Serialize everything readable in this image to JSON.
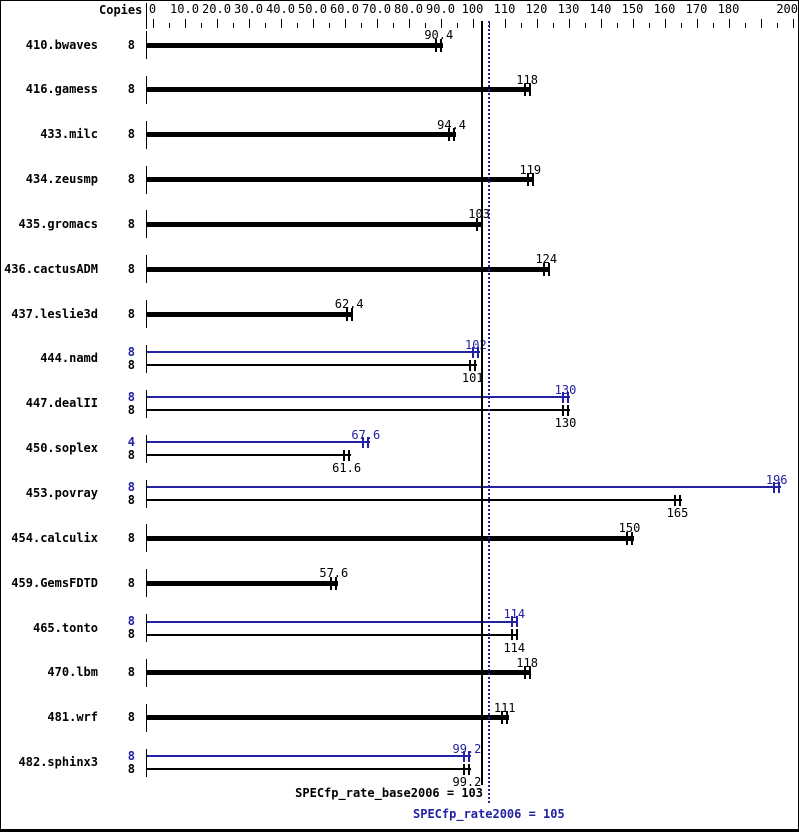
{
  "header": {
    "copies_label": "Copies"
  },
  "colors": {
    "peak_blue": "#2222a2",
    "base_black": "#000000",
    "background": "#ffffff"
  },
  "chart_data": {
    "type": "bar",
    "orientation": "horizontal",
    "title": "",
    "xlabel": "",
    "ylabel": "Copies",
    "xlim": [
      0,
      200
    ],
    "grid": false,
    "axis": {
      "major_step": 10,
      "minor_step": 5,
      "tick_labels": [
        "0",
        "10.0",
        "20.0",
        "30.0",
        "40.0",
        "50.0",
        "60.0",
        "70.0",
        "80.0",
        "90.0",
        "100",
        "110",
        "120",
        "130",
        "140",
        "150",
        "160",
        "170",
        "180",
        "",
        "200"
      ]
    },
    "benchmarks": [
      {
        "name": "410.bwaves",
        "bars": [
          {
            "kind": "base",
            "copies": "8",
            "value": 90.4,
            "label": "90.4"
          }
        ]
      },
      {
        "name": "416.gamess",
        "bars": [
          {
            "kind": "base",
            "copies": "8",
            "value": 118,
            "label": "118"
          }
        ]
      },
      {
        "name": "433.milc",
        "bars": [
          {
            "kind": "base",
            "copies": "8",
            "value": 94.4,
            "label": "94.4"
          }
        ]
      },
      {
        "name": "434.zeusmp",
        "bars": [
          {
            "kind": "base",
            "copies": "8",
            "value": 119,
            "label": "119"
          }
        ]
      },
      {
        "name": "435.gromacs",
        "bars": [
          {
            "kind": "base",
            "copies": "8",
            "value": 103,
            "label": "103"
          }
        ]
      },
      {
        "name": "436.cactusADM",
        "bars": [
          {
            "kind": "base",
            "copies": "8",
            "value": 124,
            "label": "124"
          }
        ]
      },
      {
        "name": "437.leslie3d",
        "bars": [
          {
            "kind": "base",
            "copies": "8",
            "value": 62.4,
            "label": "62.4"
          }
        ]
      },
      {
        "name": "444.namd",
        "bars": [
          {
            "kind": "peak",
            "copies": "8",
            "value": 102,
            "label": "102"
          },
          {
            "kind": "base",
            "copies": "8",
            "value": 101,
            "label": "101"
          }
        ]
      },
      {
        "name": "447.dealII",
        "bars": [
          {
            "kind": "peak",
            "copies": "8",
            "value": 130,
            "label": "130"
          },
          {
            "kind": "base",
            "copies": "8",
            "value": 130,
            "label": "130"
          }
        ]
      },
      {
        "name": "450.soplex",
        "bars": [
          {
            "kind": "peak",
            "copies": "4",
            "value": 67.6,
            "label": "67.6"
          },
          {
            "kind": "base",
            "copies": "8",
            "value": 61.6,
            "label": "61.6"
          }
        ]
      },
      {
        "name": "453.povray",
        "bars": [
          {
            "kind": "peak",
            "copies": "8",
            "value": 196,
            "label": "196"
          },
          {
            "kind": "base",
            "copies": "8",
            "value": 165,
            "label": "165"
          }
        ]
      },
      {
        "name": "454.calculix",
        "bars": [
          {
            "kind": "base",
            "copies": "8",
            "value": 150,
            "label": "150"
          }
        ]
      },
      {
        "name": "459.GemsFDTD",
        "bars": [
          {
            "kind": "base",
            "copies": "8",
            "value": 57.6,
            "label": "57.6"
          }
        ]
      },
      {
        "name": "465.tonto",
        "bars": [
          {
            "kind": "peak",
            "copies": "8",
            "value": 114,
            "label": "114"
          },
          {
            "kind": "base",
            "copies": "8",
            "value": 114,
            "label": "114"
          }
        ]
      },
      {
        "name": "470.lbm",
        "bars": [
          {
            "kind": "base",
            "copies": "8",
            "value": 118,
            "label": "118"
          }
        ]
      },
      {
        "name": "481.wrf",
        "bars": [
          {
            "kind": "base",
            "copies": "8",
            "value": 111,
            "label": "111"
          }
        ]
      },
      {
        "name": "482.sphinx3",
        "bars": [
          {
            "kind": "peak",
            "copies": "8",
            "value": 99.2,
            "label": "99.2"
          },
          {
            "kind": "base",
            "copies": "8",
            "value": 99.2,
            "label": "99.2"
          }
        ]
      }
    ],
    "medians": [
      {
        "id": "base",
        "metric": "SPECfp_rate_base2006",
        "value": 103,
        "label": "SPECfp_rate_base2006 = 103",
        "style": "solid",
        "color": "#000000"
      },
      {
        "id": "peak",
        "metric": "SPECfp_rate2006",
        "value": 105,
        "label": "SPECfp_rate2006 = 105",
        "style": "dotted",
        "color": "#2222a2"
      }
    ]
  }
}
